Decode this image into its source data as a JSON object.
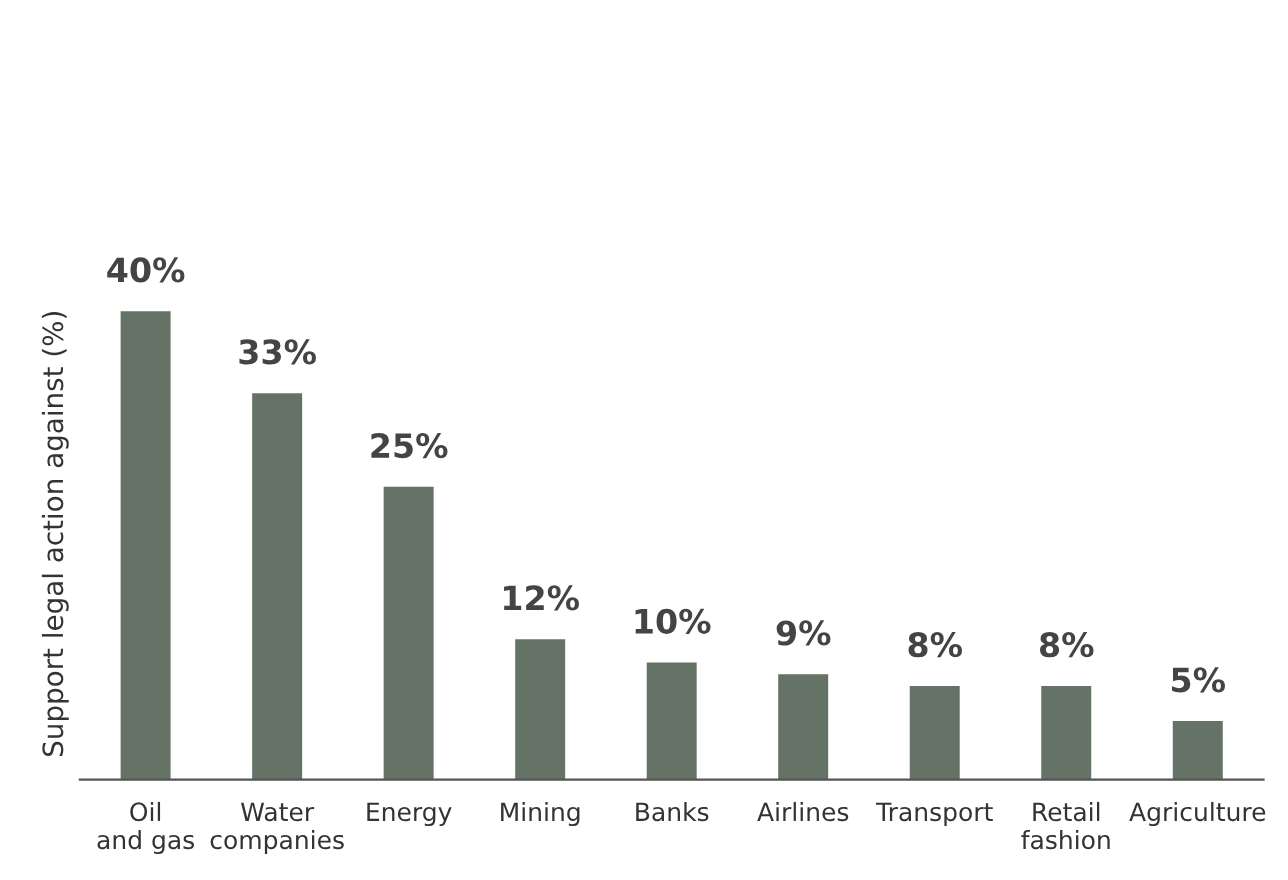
{
  "chart_data": {
    "type": "bar",
    "ylabel": "Support legal action against (%)",
    "categories": [
      "Oil\nand gas",
      "Water\ncompanies",
      "Energy",
      "Mining",
      "Banks",
      "Airlines",
      "Transport",
      "Retail\nfashion",
      "Agriculture"
    ],
    "values": [
      40,
      33,
      25,
      12,
      10,
      9,
      8,
      8,
      5
    ],
    "value_labels": [
      "40%",
      "33%",
      "25%",
      "12%",
      "10%",
      "9%",
      "8%",
      "8%",
      "5%"
    ],
    "color": "#657266",
    "grid": false,
    "legend": false
  }
}
